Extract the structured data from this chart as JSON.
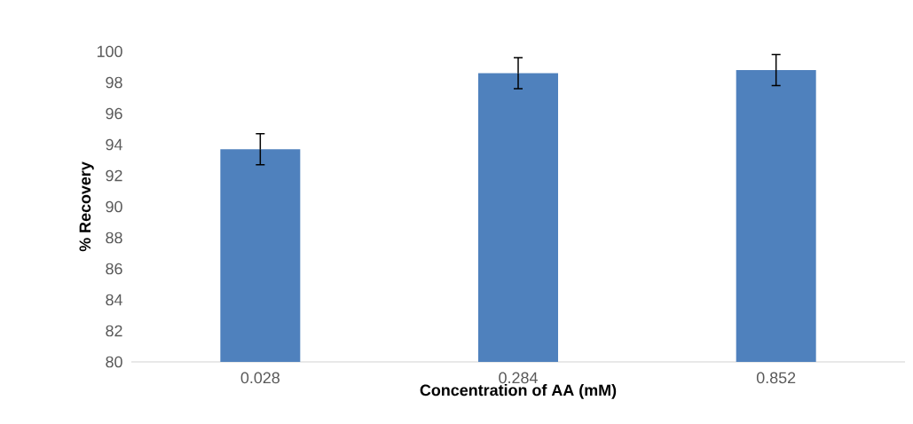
{
  "chart_data": {
    "type": "bar",
    "xlabel": "Concentration of AA (mM)",
    "ylabel": "% Recovery",
    "categories": [
      "0.028",
      "0.284",
      "0.852"
    ],
    "values": [
      93.7,
      98.6,
      98.8
    ],
    "errors": [
      1.0,
      1.0,
      1.0
    ],
    "color": "#4f81bd",
    "ylim": [
      80,
      100
    ],
    "yticks": [
      80,
      82,
      84,
      86,
      88,
      90,
      92,
      94,
      96,
      98,
      100
    ],
    "grid": false
  }
}
